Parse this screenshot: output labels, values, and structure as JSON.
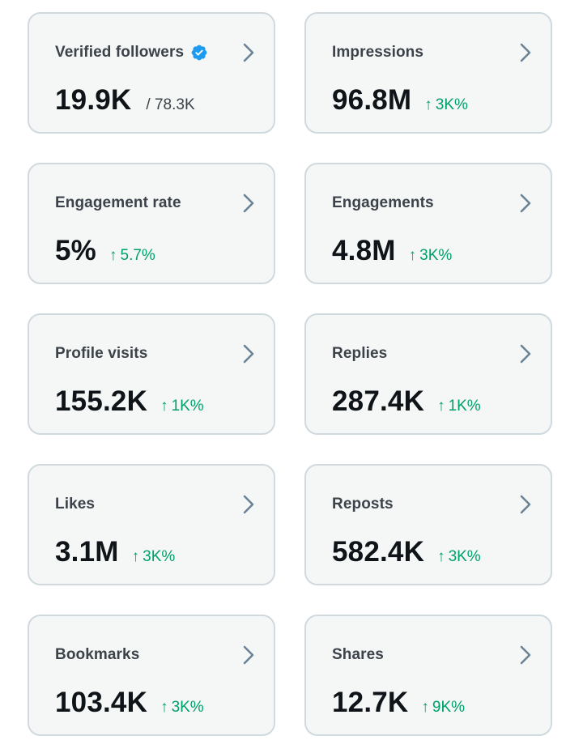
{
  "colors": {
    "card_bg": "#f5f7f7",
    "card_border": "#cfd9de",
    "label": "#3b4249",
    "value": "#0f1419",
    "positive_change": "#00a06a",
    "verified_badge": "#1d9bf0",
    "chevron": "#6b8396"
  },
  "icons": {
    "verified": "verified-badge-icon",
    "chevron": "chevron-right-icon",
    "up_arrow": "↑"
  },
  "cards": [
    {
      "label": "Verified followers",
      "value": "19.9K",
      "total": "/ 78.3K",
      "change": "",
      "verified": true
    },
    {
      "label": "Impressions",
      "value": "96.8M",
      "total": "",
      "change": "3K%"
    },
    {
      "label": "Engagement rate",
      "value": "5%",
      "total": "",
      "change": "5.7%"
    },
    {
      "label": "Engagements",
      "value": "4.8M",
      "total": "",
      "change": "3K%"
    },
    {
      "label": "Profile visits",
      "value": "155.2K",
      "total": "",
      "change": "1K%"
    },
    {
      "label": "Replies",
      "value": "287.4K",
      "total": "",
      "change": "1K%"
    },
    {
      "label": "Likes",
      "value": "3.1M",
      "total": "",
      "change": "3K%"
    },
    {
      "label": "Reposts",
      "value": "582.4K",
      "total": "",
      "change": "3K%"
    },
    {
      "label": "Bookmarks",
      "value": "103.4K",
      "total": "",
      "change": "3K%"
    },
    {
      "label": "Shares",
      "value": "12.7K",
      "total": "",
      "change": "9K%"
    }
  ]
}
